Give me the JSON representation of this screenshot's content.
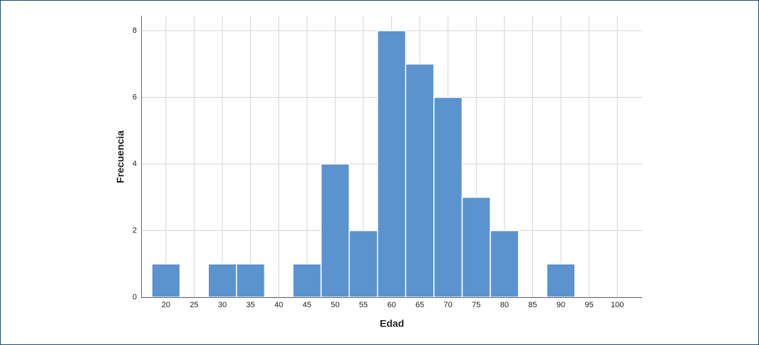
{
  "chart_data": {
    "type": "histogram",
    "x_label": "Edad",
    "y_label": "Frecuencia",
    "bins": [
      17.5,
      22.5,
      27.5,
      32.5,
      37.5,
      42.5,
      47.5,
      52.5,
      57.5,
      62.5,
      67.5,
      72.5,
      77.5,
      82.5,
      87.5,
      92.5
    ],
    "values": [
      1,
      0,
      1,
      1,
      0,
      1,
      4,
      2,
      8,
      7,
      6,
      3,
      2,
      0,
      1
    ],
    "color": "#5b93cf",
    "xlim": [
      15.6,
      104.4
    ],
    "xticks": [
      20,
      25,
      30,
      35,
      40,
      45,
      50,
      55,
      60,
      65,
      70,
      75,
      80,
      85,
      90,
      95,
      100
    ],
    "ylim": [
      0,
      8.45
    ],
    "yticks": [
      0,
      2,
      4,
      6,
      8
    ],
    "grid": true
  }
}
